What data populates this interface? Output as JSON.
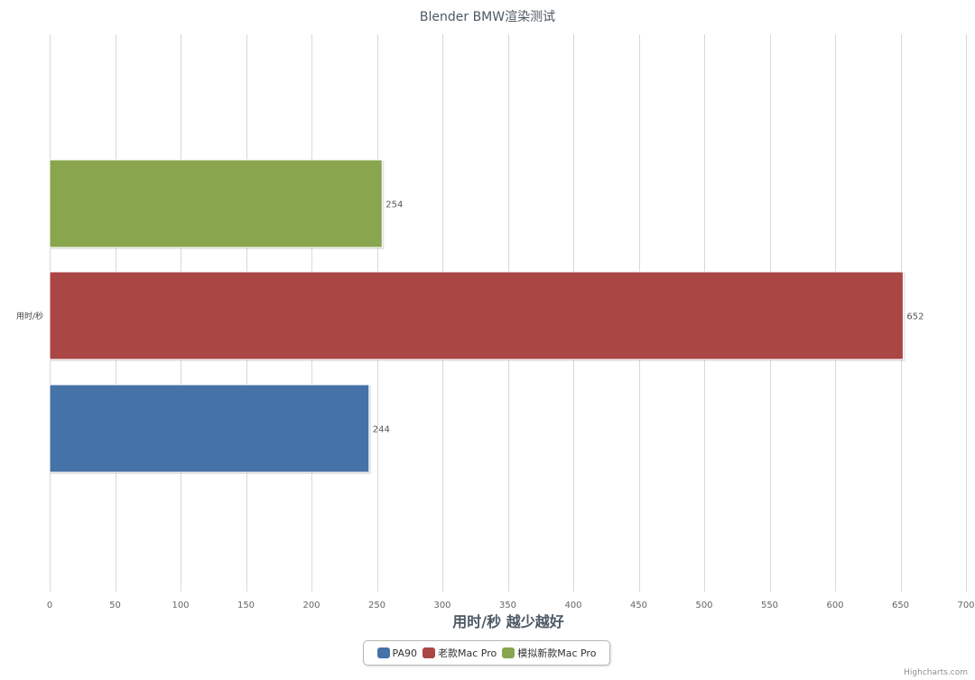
{
  "chart_data": {
    "type": "bar",
    "orientation": "horizontal",
    "title": "Blender BMW渲染测试",
    "category_label": "用时/秒",
    "xlabel": "用时/秒 越少越好",
    "xlim": [
      0,
      700
    ],
    "x_ticks": [
      0,
      50,
      100,
      150,
      200,
      250,
      300,
      350,
      400,
      450,
      500,
      550,
      600,
      650,
      700
    ],
    "grid": true,
    "legend_position": "bottom-center",
    "series": [
      {
        "name": "PA90",
        "value": 244,
        "color": "#4572A7"
      },
      {
        "name": "老款Mac Pro",
        "value": 652,
        "color": "#AA4643"
      },
      {
        "name": "模拟新款Mac Pro",
        "value": 254,
        "color": "#89A54E"
      }
    ]
  },
  "credits": "Highcharts.com"
}
